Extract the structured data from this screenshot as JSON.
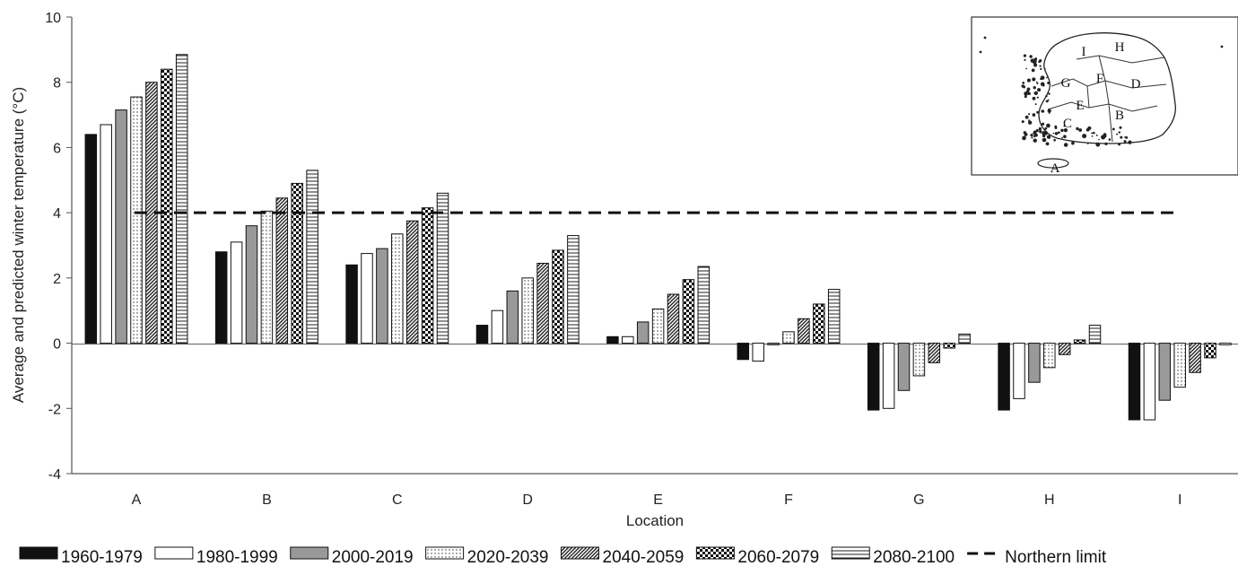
{
  "chart_data": {
    "type": "bar",
    "xlabel": "Location",
    "ylabel": "Average and predicted winter temperature (°C)",
    "ylim": [
      -4,
      10
    ],
    "yticks": [
      -4,
      -2,
      0,
      2,
      4,
      6,
      8,
      10
    ],
    "grid": false,
    "legend_position": "bottom",
    "categories": [
      "A",
      "B",
      "C",
      "D",
      "E",
      "F",
      "G",
      "H",
      "I"
    ],
    "series": [
      {
        "name": "1960-1979",
        "pattern": "solid-black",
        "values": [
          6.4,
          2.8,
          2.4,
          0.55,
          0.2,
          -0.5,
          -2.05,
          -2.05,
          -2.35
        ]
      },
      {
        "name": "1980-1999",
        "pattern": "white",
        "values": [
          6.7,
          3.1,
          2.75,
          1.0,
          0.2,
          -0.55,
          -2.0,
          -1.7,
          -2.35
        ]
      },
      {
        "name": "2000-2019",
        "pattern": "solid-gray",
        "values": [
          7.15,
          3.6,
          2.9,
          1.6,
          0.65,
          -0.05,
          -1.45,
          -1.2,
          -1.75
        ]
      },
      {
        "name": "2020-2039",
        "pattern": "dots",
        "values": [
          7.55,
          4.05,
          3.35,
          2.0,
          1.05,
          0.35,
          -1.0,
          -0.75,
          -1.35
        ]
      },
      {
        "name": "2040-2059",
        "pattern": "diagonal",
        "values": [
          8.0,
          4.45,
          3.75,
          2.45,
          1.5,
          0.75,
          -0.6,
          -0.35,
          -0.9
        ]
      },
      {
        "name": "2060-2079",
        "pattern": "checker",
        "values": [
          8.4,
          4.9,
          4.15,
          2.85,
          1.95,
          1.2,
          -0.15,
          0.1,
          -0.45
        ]
      },
      {
        "name": "2080-2100",
        "pattern": "horizontal",
        "values": [
          8.85,
          5.3,
          4.6,
          3.3,
          2.35,
          1.65,
          0.28,
          0.55,
          -0.05
        ]
      }
    ],
    "reference_line": {
      "name": "Northern limit",
      "value": 4,
      "style": "dashed"
    },
    "inset_map": {
      "labels": [
        "A",
        "B",
        "C",
        "D",
        "E",
        "F",
        "G",
        "H",
        "I"
      ]
    }
  }
}
